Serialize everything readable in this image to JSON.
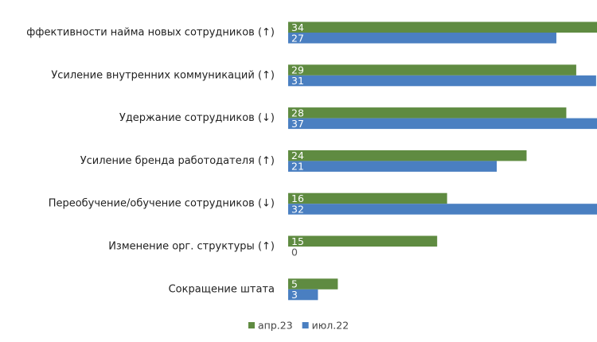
{
  "chart_data": {
    "type": "bar",
    "orientation": "horizontal",
    "categories": [
      "ффективности найма новых сотрудников (↑)",
      "Усиление внутренних коммуникаций (↑)",
      "Удержание сотрудников (↓)",
      "Усиление бренда работодателя (↑)",
      "Переобучение/обучение сотрудников (↓)",
      "Изменение орг. структуры (↑)",
      "Сокращение штата"
    ],
    "series": [
      {
        "name": "апр.23",
        "color": "#5f8b41",
        "values": [
          34,
          29,
          28,
          24,
          16,
          15,
          5
        ]
      },
      {
        "name": "июл.22",
        "color": "#4a7fc1",
        "values": [
          27,
          31,
          37,
          21,
          32,
          0,
          3
        ]
      }
    ]
  }
}
